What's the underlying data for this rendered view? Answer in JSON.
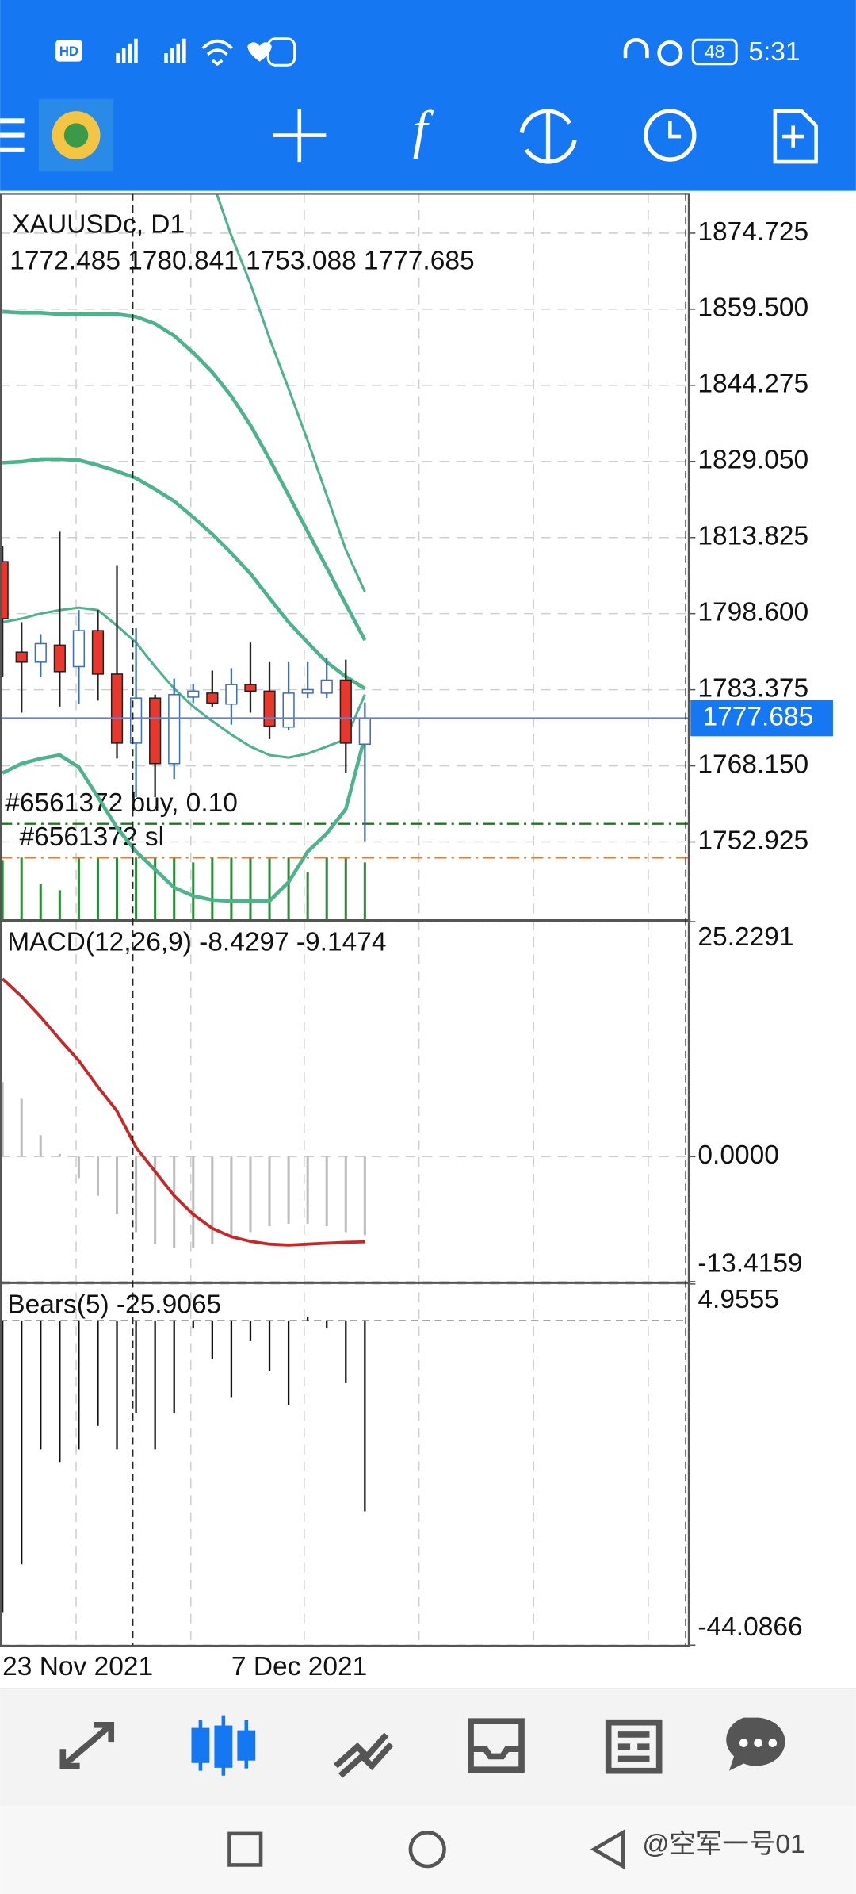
{
  "status_bar": {
    "network": "HD",
    "time": "5:31",
    "battery": "48"
  },
  "toolbar": {
    "indicator_icon": "f"
  },
  "watermark": "@空军一号01",
  "chart_data": [
    {
      "type": "candlestick",
      "title": "XAUUSDc, D1",
      "categories": [
        "23 Nov 2021",
        null,
        null,
        null,
        null,
        null,
        null,
        null,
        null,
        null,
        null,
        null,
        "7 Dec 2021",
        null,
        null,
        null,
        null,
        null,
        null,
        null
      ],
      "open": [
        1809.0,
        1790.9,
        1788.9,
        1792.3,
        1788.0,
        1795.2,
        1786.5,
        1772.7,
        1781.7,
        1768.6,
        1781.9,
        1782.7,
        1780.5,
        1784.4,
        1783.1,
        1775.9,
        1782.7,
        1782.7,
        1785.3,
        1772.485
      ],
      "high": [
        1812.1,
        1796.9,
        1794.5,
        1815.0,
        1799.3,
        1799.3,
        1808.3,
        1795.7,
        1782.4,
        1785.6,
        1784.6,
        1787.2,
        1787.7,
        1792.8,
        1788.9,
        1788.9,
        1788.9,
        1789.7,
        1789.4,
        1780.841
      ],
      "low": [
        1786.0,
        1778.8,
        1786.0,
        1780.0,
        1780.5,
        1781.2,
        1769.6,
        1761.9,
        1761.9,
        1765.5,
        1780.7,
        1780.0,
        1776.4,
        1778.8,
        1773.5,
        1775.2,
        1781.7,
        1781.7,
        1766.7,
        1753.088
      ],
      "close": [
        1797.6,
        1788.9,
        1792.6,
        1787.0,
        1795.2,
        1786.5,
        1772.7,
        1781.7,
        1768.6,
        1782.4,
        1783.1,
        1780.7,
        1784.4,
        1783.1,
        1776.1,
        1782.7,
        1783.4,
        1785.3,
        1772.7,
        1777.685
      ],
      "up_color": "#ffffff",
      "down_color": "#e8372d",
      "indicator_lines": [
        {
          "color": "#4cb38a",
          "values": [
            1859.0,
            1858.8,
            1858.8,
            1858.5,
            1858.5,
            1858.5,
            1858.5,
            1858.0,
            1856.6,
            1854.2,
            1850.8,
            1846.9,
            1842.1,
            1836.3,
            1829.5,
            1822.3,
            1815.0,
            1807.8,
            1800.5,
            1793.3
          ]
        },
        {
          "color": "#4cb38a",
          "values": [
            null,
            null,
            null,
            null,
            null,
            null,
            null,
            null,
            null,
            null,
            null,
            1885.1,
            1874.2,
            1864.6,
            1853.7,
            1843.6,
            1833.2,
            1822.3,
            1811.4,
            1803.0
          ]
        },
        {
          "color": "#4cb38a",
          "values": [
            1828.8,
            1829.0,
            1829.5,
            1829.5,
            1829.3,
            1828.3,
            1827.1,
            1825.7,
            1823.5,
            1821.1,
            1817.9,
            1814.5,
            1810.7,
            1806.6,
            1801.7,
            1796.9,
            1792.8,
            1788.9,
            1786.0,
            1783.6
          ]
        },
        {
          "color": "#4cb38a",
          "values": [
            1796.9,
            1797.6,
            1798.6,
            1799.3,
            1799.8,
            1799.3,
            1796.2,
            1792.8,
            1788.0,
            1783.6,
            1780.0,
            1777.1,
            1774.4,
            1772.0,
            1770.3,
            1769.8,
            1770.6,
            1772.0,
            1773.5,
            1782.4
          ]
        },
        {
          "color": "#4cb38a",
          "values": [
            1766.7,
            1768.6,
            1769.6,
            1770.3,
            1767.9,
            1761.9,
            1755.8,
            1751.0,
            1747.4,
            1743.8,
            1742.1,
            1741.3,
            1741.1,
            1741.1,
            1741.1,
            1744.9,
            1751.0,
            1754.6,
            1759.5,
            1774.0
          ]
        }
      ],
      "volumes": [
        50,
        52,
        30,
        25,
        52,
        52,
        52,
        52,
        52,
        52,
        48,
        52,
        52,
        52,
        52,
        52,
        40,
        52,
        52,
        48
      ],
      "volume_color": "#2e8b3a",
      "orders": [
        {
          "label": "#6561372 buy, 0.10",
          "price": 1756.55,
          "color": "#1b7a1b"
        },
        {
          "label": "#6561372 sl",
          "price": 1749.78,
          "color": "#e07b39"
        }
      ],
      "price_line_color": "#6a7fc8",
      "ylim": [
        1737.22,
        1882.7
      ],
      "yticks": [
        1874.725,
        {
          "value": 1859.5,
          "label": "1859.500"
        },
        1844.275,
        {
          "value": 1829.05,
          "label": "1829.050"
        },
        1813.825,
        {
          "value": 1798.6,
          "label": "1798.600"
        },
        1783.375,
        {
          "value": 1768.15,
          "label": "1768.150"
        },
        1752.925
      ],
      "grid": true
    },
    {
      "type": "macd",
      "title": "MACD(12,26,9)",
      "histogram": [
        8.0,
        6.2,
        2.3,
        0.3,
        -2.3,
        -4.2,
        -6.2,
        -8.1,
        -9.4,
        -9.8,
        -9.8,
        -9.4,
        -8.75,
        -8.1,
        -7.46,
        -7.2,
        -7.2,
        -7.46,
        -8.1,
        -8.4297
      ],
      "signal": [
        19.1,
        17.2,
        15.0,
        12.6,
        10.3,
        7.5,
        4.9,
        1.0,
        -1.6,
        -4.2,
        -6.2,
        -7.7,
        -8.6,
        -9.1,
        -9.4,
        -9.5,
        -9.4,
        -9.3,
        -9.2,
        -9.1474
      ],
      "histogram_color": "#bdbdbd",
      "signal_color": "#c62828",
      "ylim": [
        -13.4159,
        25.2291
      ],
      "yticks": [
        25.2291,
        {
          "value": 0,
          "label": "0.0000"
        },
        -13.4159
      ],
      "grid": true
    },
    {
      "type": "bears",
      "title": "Bears(5)",
      "values": [
        -39.7,
        -33.1,
        -17.5,
        -19.2,
        -17.5,
        -14.3,
        -17.5,
        -12.6,
        -17.5,
        -12.6,
        -1.1,
        -5.2,
        -10.5,
        -2.8,
        -6.9,
        -11.5,
        0.5,
        -1.1,
        -8.5,
        -25.9065
      ],
      "color": "#111111",
      "ylim": [
        -44.0866,
        4.9555
      ],
      "yticks": [
        4.9555,
        -44.0866
      ],
      "grid": true
    }
  ]
}
